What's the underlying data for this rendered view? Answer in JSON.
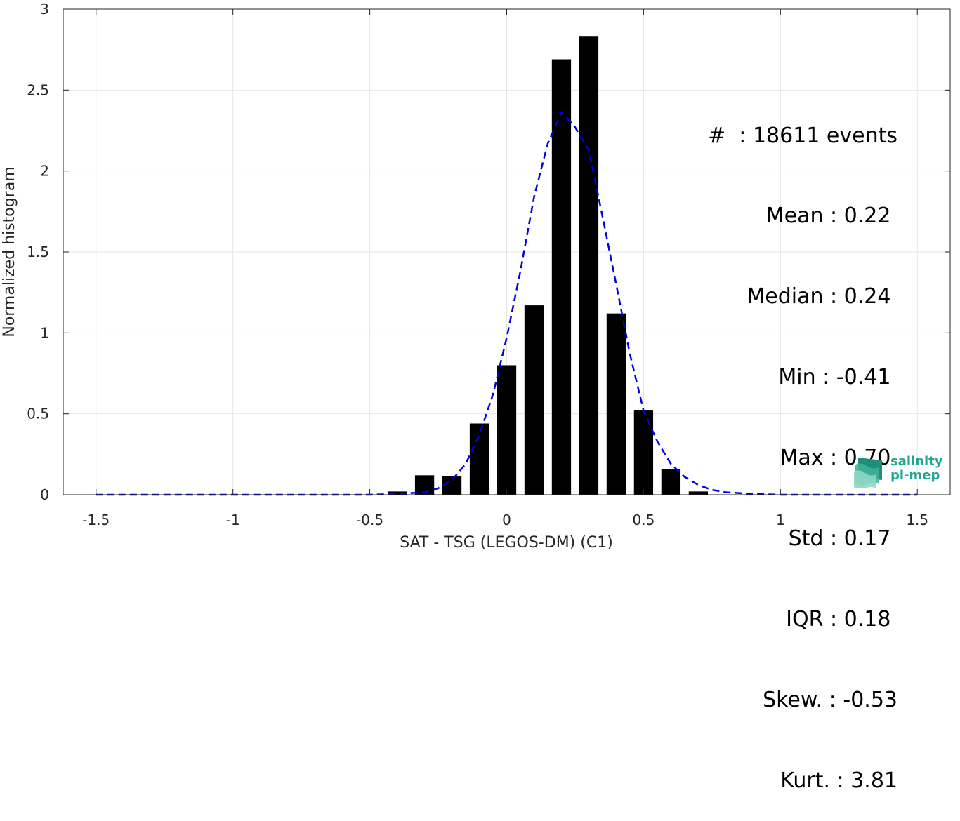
{
  "chart_data": {
    "type": "bar",
    "xlabel": "SAT - TSG (LEGOS-DM) (C1)",
    "ylabel": "Normalized histogram",
    "xlim": [
      -1.62,
      1.62
    ],
    "ylim": [
      0,
      3
    ],
    "xticks": [
      "-1.5",
      "-1",
      "-0.5",
      "0",
      "0.5",
      "1",
      "1.5"
    ],
    "xtick_values": [
      -1.5,
      -1,
      -0.5,
      0,
      0.5,
      1,
      1.5
    ],
    "yticks": [
      "0",
      "0.5",
      "1",
      "1.5",
      "2",
      "2.5",
      "3"
    ],
    "ytick_values": [
      0,
      0.5,
      1,
      1.5,
      2,
      2.5,
      3
    ],
    "grid": true,
    "bin_width": 0.1,
    "bar_color": "#000000",
    "bins": [
      {
        "x": -0.4,
        "y": 0.02
      },
      {
        "x": -0.3,
        "y": 0.12
      },
      {
        "x": -0.2,
        "y": 0.115
      },
      {
        "x": -0.1,
        "y": 0.44
      },
      {
        "x": 0.0,
        "y": 0.8
      },
      {
        "x": 0.1,
        "y": 1.17
      },
      {
        "x": 0.2,
        "y": 2.69
      },
      {
        "x": 0.3,
        "y": 2.83
      },
      {
        "x": 0.4,
        "y": 1.12
      },
      {
        "x": 0.5,
        "y": 0.52
      },
      {
        "x": 0.6,
        "y": 0.16
      },
      {
        "x": 0.7,
        "y": 0.02
      }
    ],
    "fit_curve": {
      "style": "dashed",
      "color": "#0000e0",
      "x": [
        -1.5,
        -0.5,
        -0.4,
        -0.3,
        -0.25,
        -0.2,
        -0.15,
        -0.1,
        -0.05,
        0.0,
        0.05,
        0.1,
        0.15,
        0.2,
        0.225,
        0.25,
        0.3,
        0.35,
        0.4,
        0.45,
        0.5,
        0.55,
        0.6,
        0.65,
        0.7,
        0.75,
        0.8,
        0.9,
        1.0,
        1.5
      ],
      "y": [
        0.0,
        0.0,
        0.005,
        0.015,
        0.04,
        0.09,
        0.19,
        0.37,
        0.62,
        0.97,
        1.38,
        1.84,
        2.17,
        2.36,
        2.32,
        2.27,
        2.13,
        1.72,
        1.3,
        0.87,
        0.52,
        0.33,
        0.19,
        0.11,
        0.06,
        0.03,
        0.015,
        0.005,
        0.0,
        0.0
      ]
    }
  },
  "stats": [
    "#  : 18611 events",
    "Mean : 0.22 ",
    "Median : 0.24 ",
    "Min : -0.41 ",
    "Max : 0.70 ",
    "Std : 0.17 ",
    "IQR : 0.18 ",
    "Skew. : -0.53",
    "Kurt. : 3.81"
  ],
  "logo": {
    "line1": "salinity",
    "line2": "pi-mep",
    "color": "#1fa88f"
  }
}
